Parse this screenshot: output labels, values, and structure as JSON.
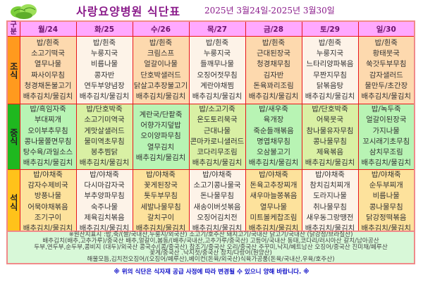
{
  "header": {
    "title": "사랑요양병원  식단표",
    "date_range": "2025년 3월24일-2025년 3월30일",
    "category_label": "구분"
  },
  "meals": {
    "breakfast": "조식",
    "lunch": "중식",
    "dinner": "석식"
  },
  "colors": {
    "title": "#8a1a8a",
    "header_bg": "#ffa8ff",
    "grid": "#e8161c",
    "breakfast_label": "#ff9a1e",
    "lunch_label": "#1fb81f",
    "dinner_label": "#ffc21a",
    "footer_text": "#1010c8"
  },
  "days": [
    {
      "label": "월/24",
      "breakfast": [
        "밥/흰죽",
        "소고기떡국",
        "열무나물",
        "짜사이무침",
        "청경채돈불고기",
        "배추김치/물김치"
      ],
      "lunch": [
        "밥/흑임자죽",
        "부대찌개",
        "오이부추무침",
        "콩나물쫄면무침",
        "탕수육/과일소스",
        "배추김치/물김치"
      ],
      "dinner": [
        "밥/야채죽",
        "감자수제비국",
        "방풍나물",
        "어묵야채볶음",
        "조기구이",
        "배추김치/물김치"
      ]
    },
    {
      "label": "화/25",
      "breakfast": [
        "밥/흰죽",
        "누룽지국",
        "비름나물",
        "콩자반",
        "연두부양념장",
        "배추김치/물김치"
      ],
      "lunch": [
        "밥/단호박죽",
        "소고기미역국",
        "게맛살샐러드",
        "물미역초무침",
        "봉추찜닭",
        "배추김치/물김치"
      ],
      "dinner": [
        "밥/야채죽",
        "다시마감자국",
        "부추양파무침",
        "숙주나물",
        "제육김치볶음",
        "배추김치/물김치"
      ]
    },
    {
      "label": "수/26",
      "breakfast": [
        "밥/흰죽",
        "크림스프",
        "얼갈이나물",
        "단호박샐러드",
        "닭살고추장불고기",
        "배추김치/물김치"
      ],
      "lunch": [
        "계란국/단팥죽",
        "어향가지덮밥",
        "오이양파무침",
        "열무김치",
        "배추김치/물김치"
      ],
      "dinner": [
        "밥/야채죽",
        "꽃게된장국",
        "톳두부무침",
        "세발나물무침",
        "갈치구이",
        "배추김치/물김치"
      ]
    },
    {
      "label": "목/27",
      "breakfast": [
        "밥/흰죽",
        "누룽지국",
        "들깨무나물",
        "오징어젓무침",
        "계란야채찜",
        "배추김치/물김치"
      ],
      "lunch": [
        "밥/소고기죽",
        "온도토리묵국",
        "근대나물",
        "콘마카로니샐러드",
        "코다리무조림",
        "배추김치/물김치"
      ],
      "dinner": [
        "밥/야채죽",
        "소고기콩나물국",
        "돈나물무침",
        "새송이버섯볶음",
        "오징어김치전",
        "배추김치/물김치"
      ]
    },
    {
      "label": "금/28",
      "breakfast": [
        "밥/흰죽",
        "근대된장국",
        "청경채무침",
        "김자반",
        "돈육꽈리조림",
        "배추김치/물김치"
      ],
      "lunch": [
        "밥/새우죽",
        "육개장",
        "죽순들깨볶음",
        "명엽채무침",
        "오삼불고기",
        "배추김치/물김치"
      ],
      "dinner": [
        "밥/야채죽",
        "돈육고추장찌개",
        "새우마늘쫑볶음",
        "열무나물",
        "미트볼케찹조림",
        "배추김치/물김치"
      ]
    },
    {
      "label": "토/29",
      "breakfast": [
        "밥/흰죽",
        "누룽지국",
        "느타리양파볶음",
        "무짠지무침",
        "닭볶음탕",
        "배추김치/물김치"
      ],
      "lunch": [
        "밥/단호박죽",
        "어묵뭇국",
        "참나물유자무침",
        "콩나물무침",
        "제육볶음",
        "배추김치/물김치"
      ],
      "dinner": [
        "밥/야채죽",
        "참치김치찌개",
        "도라지나물",
        "취나물무침",
        "새우동그랑땡전",
        "배추김치/물김치"
      ]
    },
    {
      "label": "일/30",
      "breakfast": [
        "밥/흰죽",
        "황태뭇국",
        "쑥갓두부무침",
        "감자샐러드",
        "물만두/초간장",
        "배추김치/물김치"
      ],
      "lunch": [
        "밥/녹두죽",
        "얼갈이된장국",
        "가지나물",
        "꼬시래기초무침",
        "삼치무조림",
        "배추김치/물김치"
      ],
      "dinner": [
        "밥/야채죽",
        "순두부찌개",
        "비름나물",
        "콩나물무침",
        "닭강정떡볶음",
        "배추김치/물김치"
      ]
    }
  ],
  "origin_notes": [
    "※원산지표시 :밥,죽/(쌀/국내산,누룽지/외국산) 소고기/호주산   돼지고기/국내산 닭고기/국내산 (닭강정/브라질산)",
    "배추김치(배추,고추가루)/중국산    배추,얼갈이,봄동/(배추/국내산,고추가루/중국산) 고등어/국내산   동태,코다리/러시아산    갈치/남아공산",
    "두부,연두부,순두부,콩비지 (대두)/외국산  콩국수/(콩/중국산)    참조기/중국산   오리/중국산 주꾸미,낙지/베트남산 오징어/중국산 진미채/페루산",
    "꽃게/중국산    .낙지젓/중국산 참치/다랑어(원양산)",
    "해물모듬,김치전오징어/(오징어/페루산),베이컨(돈육/외국산)식육가공품(돈육/국내산,우육/호주산)"
  ],
  "footer": "※ 위의 식단은 식자재 공급 사정에 따라 변경될 수 있으니 양해 바랍니다. ※"
}
